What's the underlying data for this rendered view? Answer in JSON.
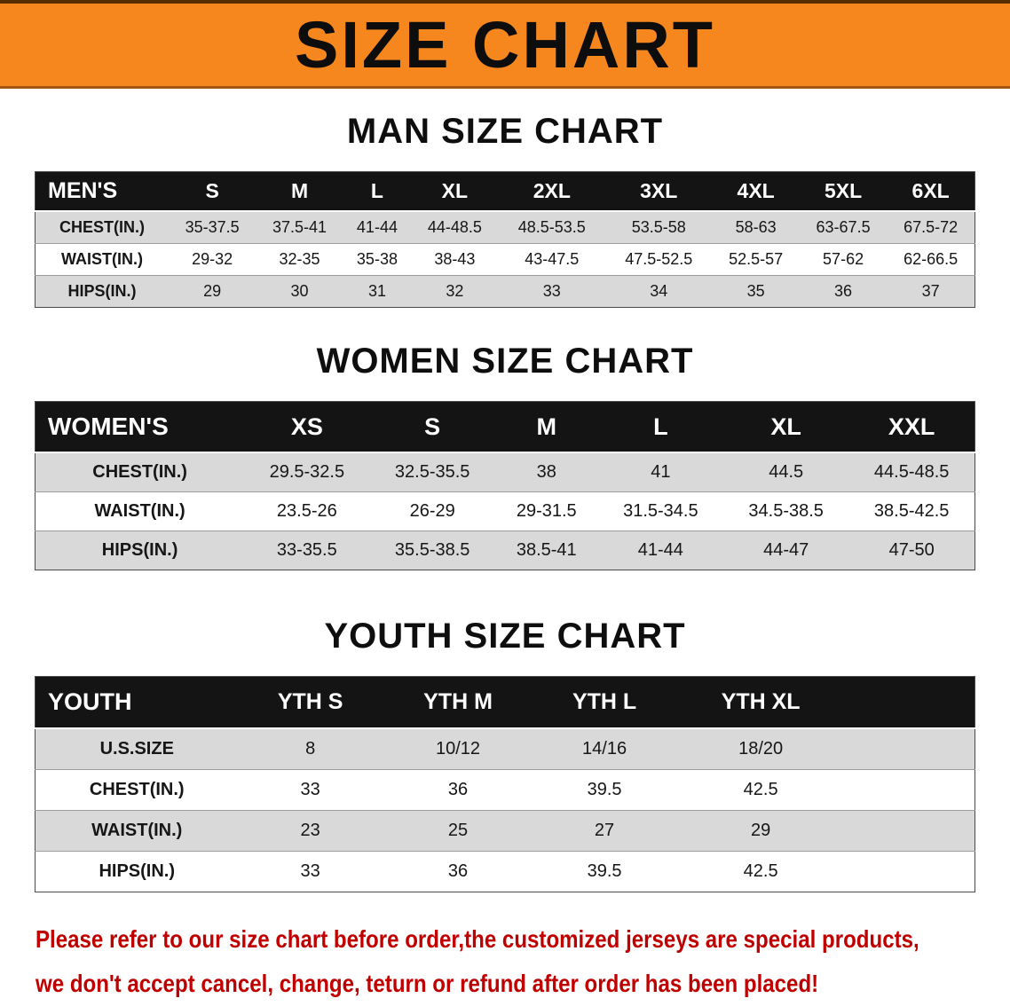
{
  "banner": {
    "title": "SIZE CHART"
  },
  "tables": [
    {
      "id": "men",
      "heading": "MAN SIZE CHART",
      "header": [
        "MEN'S",
        "S",
        "M",
        "L",
        "XL",
        "2XL",
        "3XL",
        "4XL",
        "5XL",
        "6XL"
      ],
      "rows": [
        [
          "CHEST(IN.)",
          "35-37.5",
          "37.5-41",
          "41-44",
          "44-48.5",
          "48.5-53.5",
          "53.5-58",
          "58-63",
          "63-67.5",
          "67.5-72"
        ],
        [
          "WAIST(IN.)",
          "29-32",
          "32-35",
          "35-38",
          "38-43",
          "43-47.5",
          "47.5-52.5",
          "52.5-57",
          "57-62",
          "62-66.5"
        ],
        [
          "HIPS(IN.)",
          "29",
          "30",
          "31",
          "32",
          "33",
          "34",
          "35",
          "36",
          "37"
        ]
      ]
    },
    {
      "id": "women",
      "heading": "WOMEN SIZE CHART",
      "header": [
        "WOMEN'S",
        "XS",
        "S",
        "M",
        "L",
        "XL",
        "XXL"
      ],
      "rows": [
        [
          "CHEST(IN.)",
          "29.5-32.5",
          "32.5-35.5",
          "38",
          "41",
          "44.5",
          "44.5-48.5"
        ],
        [
          "WAIST(IN.)",
          "23.5-26",
          "26-29",
          "29-31.5",
          "31.5-34.5",
          "34.5-38.5",
          "38.5-42.5"
        ],
        [
          "HIPS(IN.)",
          "33-35.5",
          "35.5-38.5",
          "38.5-41",
          "41-44",
          "44-47",
          "47-50"
        ]
      ]
    },
    {
      "id": "youth",
      "heading": "YOUTH SIZE CHART",
      "header": [
        "YOUTH",
        "YTH S",
        "YTH M",
        "YTH L",
        "YTH XL"
      ],
      "rows": [
        [
          "U.S.SIZE",
          "8",
          "10/12",
          "14/16",
          "18/20"
        ],
        [
          "CHEST(IN.)",
          "33",
          "36",
          "39.5",
          "42.5"
        ],
        [
          "WAIST(IN.)",
          "23",
          "25",
          "27",
          "29"
        ],
        [
          "HIPS(IN.)",
          "33",
          "36",
          "39.5",
          "42.5"
        ]
      ]
    }
  ],
  "footer": {
    "line1": "Please refer to our size chart before order,the customized jerseys are special products,",
    "line2": "we don't accept cancel, change, teturn or refund after order has been placed!"
  },
  "colors": {
    "banner_bg": "#f6871f",
    "table_header_bg": "#141414",
    "stripe_row_bg": "#d9d9d9",
    "notice_text": "#c00000"
  }
}
